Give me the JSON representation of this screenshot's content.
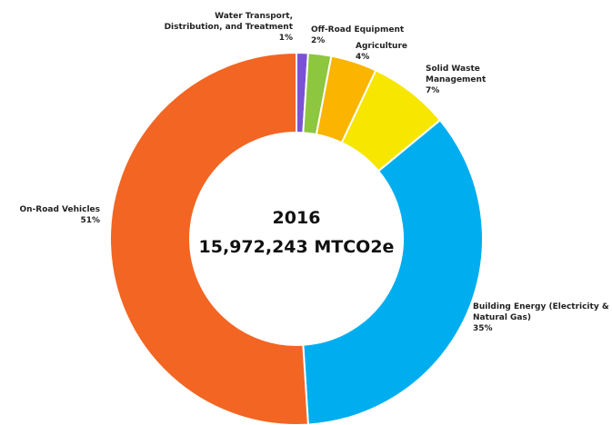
{
  "chart_data": {
    "type": "pie",
    "donut": true,
    "center_text": [
      "2016",
      "15,972,243 MTCO2e"
    ],
    "categories": [
      "Water Transport, Distribution, and Treatment",
      "Off-Road Equipment",
      "Agriculture",
      "Solid Waste Management",
      "Building Energy (Electricity & Natural Gas)",
      "On-Road Vehicles"
    ],
    "values": [
      1,
      2,
      4,
      7,
      35,
      51
    ],
    "value_labels": [
      "1%",
      "2%",
      "4%",
      "7%",
      "35%",
      "51%"
    ],
    "colors": [
      "#7b52d6",
      "#8dc63f",
      "#fbb400",
      "#f7e600",
      "#00aeef",
      "#f26522"
    ]
  }
}
